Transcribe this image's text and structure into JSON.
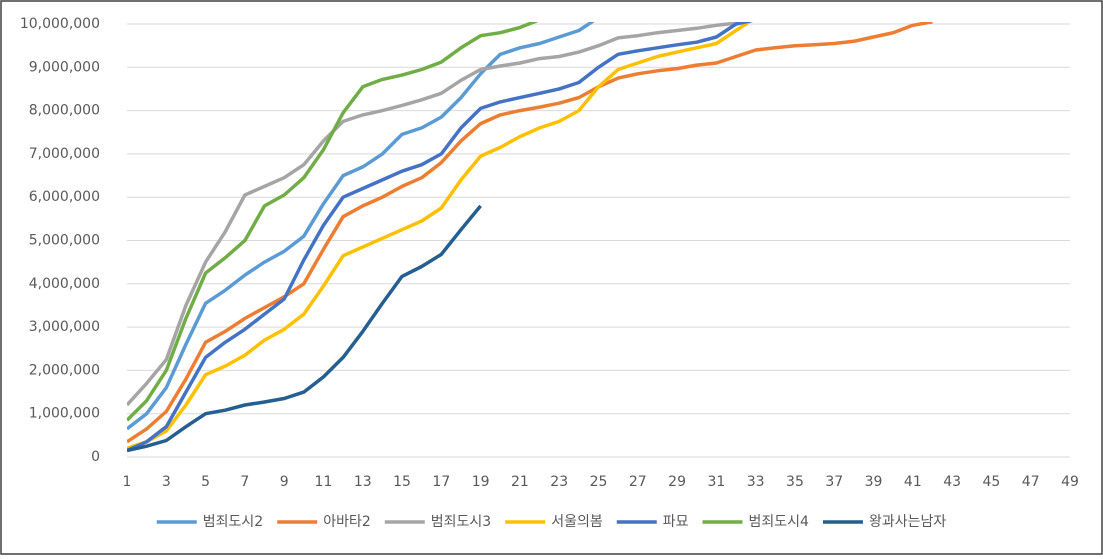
{
  "chart_data": {
    "type": "line",
    "categories": [
      1,
      null,
      3,
      null,
      5,
      null,
      7,
      null,
      9,
      null,
      11,
      null,
      13,
      null,
      15,
      null,
      17,
      null,
      19,
      null,
      21,
      null,
      23,
      null,
      25,
      null,
      27,
      null,
      29,
      null,
      31,
      null,
      33,
      null,
      35,
      null,
      37,
      null,
      39,
      null,
      41,
      null,
      43,
      null,
      45,
      null,
      47,
      null,
      49
    ],
    "series": [
      {
        "name": "범죄도시2",
        "color": "#5B9BD5",
        "values": [
          650000,
          1000000,
          1600000,
          2600000,
          3550000,
          3850000,
          4200000,
          4500000,
          4750000,
          5100000,
          5850000,
          6500000,
          6700000,
          7000000,
          7450000,
          7600000,
          7850000,
          8300000,
          8850000,
          9300000,
          9450000,
          9550000,
          9700000,
          9850000,
          10150000,
          null,
          null,
          null,
          null,
          null,
          null,
          null,
          null,
          null,
          null,
          null,
          null,
          null,
          null,
          null,
          null,
          null,
          null,
          null,
          null,
          null,
          null,
          null,
          null
        ]
      },
      {
        "name": "아바타2",
        "color": "#ED7D31",
        "values": [
          350000,
          650000,
          1050000,
          1800000,
          2650000,
          2900000,
          3200000,
          3450000,
          3700000,
          4000000,
          4800000,
          5550000,
          5800000,
          6000000,
          6250000,
          6450000,
          6800000,
          7300000,
          7700000,
          7900000,
          8000000,
          8080000,
          8170000,
          8300000,
          8550000,
          8750000,
          8850000,
          8920000,
          8970000,
          9050000,
          9100000,
          9250000,
          9400000,
          9450000,
          9500000,
          9520000,
          9550000,
          9600000,
          9700000,
          9800000,
          9970000,
          10050000,
          null,
          null,
          null,
          null,
          null,
          null,
          null
        ]
      },
      {
        "name": "범죄도시3",
        "color": "#A5A5A5",
        "values": [
          1200000,
          1700000,
          2250000,
          3500000,
          4500000,
          5200000,
          6050000,
          6250000,
          6450000,
          6750000,
          7300000,
          7750000,
          7900000,
          8000000,
          8120000,
          8250000,
          8400000,
          8700000,
          8950000,
          9030000,
          9100000,
          9200000,
          9250000,
          9350000,
          9500000,
          9680000,
          9730000,
          9800000,
          9850000,
          9900000,
          9970000,
          10020000,
          null,
          null,
          null,
          null,
          null,
          null,
          null,
          null,
          null,
          null,
          null,
          null,
          null,
          null,
          null,
          null,
          null
        ]
      },
      {
        "name": "서울의봄",
        "color": "#FFC000",
        "values": [
          200000,
          350000,
          600000,
          1200000,
          1900000,
          2100000,
          2350000,
          2700000,
          2950000,
          3300000,
          3950000,
          4650000,
          4850000,
          5050000,
          5250000,
          5450000,
          5750000,
          6400000,
          6950000,
          7150000,
          7400000,
          7600000,
          7750000,
          8000000,
          8550000,
          8950000,
          9100000,
          9250000,
          9350000,
          9450000,
          9550000,
          9850000,
          10150000,
          null,
          null,
          null,
          null,
          null,
          null,
          null,
          null,
          null,
          null,
          null,
          null,
          null,
          null,
          null,
          null
        ]
      },
      {
        "name": "파묘",
        "color": "#4472C4",
        "values": [
          150000,
          350000,
          700000,
          1500000,
          2300000,
          2650000,
          2950000,
          3300000,
          3650000,
          4550000,
          5350000,
          6000000,
          6200000,
          6400000,
          6600000,
          6750000,
          7000000,
          7600000,
          8050000,
          8200000,
          8300000,
          8400000,
          8500000,
          8650000,
          9000000,
          9300000,
          9380000,
          9450000,
          9520000,
          9580000,
          9700000,
          10000000,
          10100000,
          null,
          null,
          null,
          null,
          null,
          null,
          null,
          null,
          null,
          null,
          null,
          null,
          null,
          null,
          null,
          null
        ]
      },
      {
        "name": "범죄도시4",
        "color": "#70AD47",
        "values": [
          850000,
          1300000,
          2000000,
          3200000,
          4250000,
          4600000,
          5000000,
          5800000,
          6050000,
          6450000,
          7100000,
          7950000,
          8550000,
          8720000,
          8820000,
          8950000,
          9120000,
          9450000,
          9730000,
          9800000,
          9920000,
          10100000,
          null,
          null,
          null,
          null,
          null,
          null,
          null,
          null,
          null,
          null,
          null,
          null,
          null,
          null,
          null,
          null,
          null,
          null,
          null,
          null,
          null,
          null,
          null,
          null,
          null,
          null,
          null
        ]
      },
      {
        "name": "왕과사는남자",
        "color": "#255E91",
        "values": [
          150000,
          250000,
          380000,
          700000,
          1000000,
          1080000,
          1200000,
          1270000,
          1350000,
          1500000,
          1850000,
          2300000,
          2900000,
          3550000,
          4170000,
          4400000,
          4680000,
          5250000,
          5800000,
          null,
          null,
          null,
          null,
          null,
          null,
          null,
          null,
          null,
          null,
          null,
          null,
          null,
          null,
          null,
          null,
          null,
          null,
          null,
          null,
          null,
          null,
          null,
          null,
          null,
          null,
          null,
          null,
          null,
          null
        ]
      }
    ],
    "ylim": [
      0,
      10000000
    ],
    "yticks": [
      0,
      {
        "value": 1000000,
        "label": "1,000,000"
      },
      {
        "value": 2000000,
        "label": "2,000,000"
      },
      {
        "value": 3000000,
        "label": "3,000,000"
      },
      {
        "value": 4000000,
        "label": "4,000,000"
      },
      {
        "value": 5000000,
        "label": "5,000,000"
      },
      {
        "value": 6000000,
        "label": "6,000,000"
      },
      {
        "value": 7000000,
        "label": "7,000,000"
      },
      {
        "value": 8000000,
        "label": "8,000,000"
      },
      {
        "value": 9000000,
        "label": "9,000,000"
      },
      {
        "value": 10000000,
        "label": "10,000,000"
      }
    ],
    "grid": true,
    "legend": "bottom"
  }
}
